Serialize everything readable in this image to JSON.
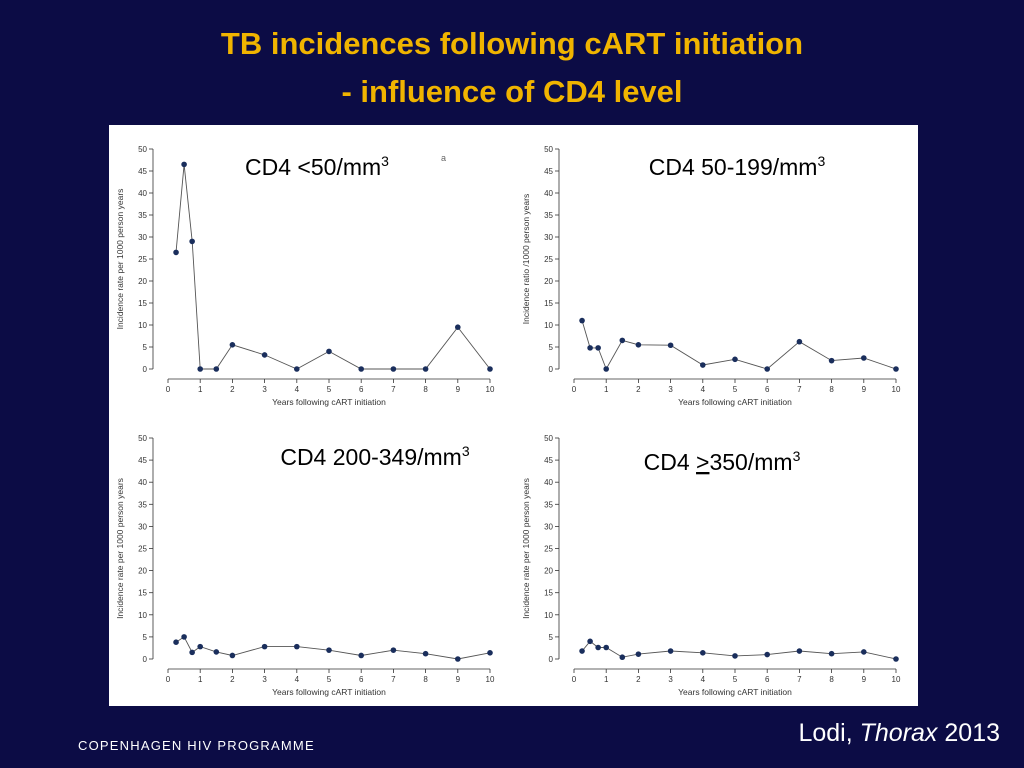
{
  "title_line1": "TB incidences following cART initiation",
  "title_line2": "- influence of CD4 level",
  "footer": "COPENHAGEN HIV PROGRAMME",
  "citation": {
    "author": "Lodi, ",
    "journal": "Thorax",
    "year": " 2013"
  },
  "colors": {
    "background": "#0c0c45",
    "title": "#f0b400",
    "marker": "#1a2e5c"
  },
  "chart_data": [
    {
      "type": "line",
      "title": "CD4 <50/mm3",
      "title_main": "CD4 <50/mm",
      "title_sup": "3",
      "corner_mark": "a",
      "xlabel": "Years following cART initiation",
      "ylabel": "Incidence rate per 1000 person years",
      "xlim": [
        0,
        10
      ],
      "ylim": [
        0,
        50
      ],
      "xticks": [
        "0",
        "1",
        "2",
        "3",
        "4",
        "5",
        "6",
        "7",
        "8",
        "9",
        "10"
      ],
      "yticks": [
        "0",
        "5",
        "10",
        "15",
        "20",
        "25",
        "30",
        "35",
        "40",
        "45",
        "50"
      ],
      "x": [
        0.25,
        0.5,
        0.75,
        1,
        1.5,
        2,
        3,
        4,
        5,
        6,
        7,
        8,
        9,
        10
      ],
      "y": [
        26.5,
        46.5,
        29,
        0,
        0,
        5.5,
        3.2,
        0,
        4,
        0,
        0,
        0,
        9.5,
        0
      ]
    },
    {
      "type": "line",
      "title": "CD4  50-199/mm3",
      "title_main": "CD4  50-199/mm",
      "title_sup": "3",
      "xlabel": "Years following cART initiation",
      "ylabel": "Incidence ratio /1000 person years",
      "xlim": [
        0,
        10
      ],
      "ylim": [
        0,
        50
      ],
      "xticks": [
        "0",
        "1",
        "2",
        "3",
        "4",
        "5",
        "6",
        "7",
        "8",
        "9",
        "10"
      ],
      "yticks": [
        "0",
        "5",
        "10",
        "15",
        "20",
        "25",
        "30",
        "35",
        "40",
        "45",
        "50"
      ],
      "x": [
        0.25,
        0.5,
        0.75,
        1,
        1.5,
        2,
        3,
        4,
        5,
        6,
        7,
        8,
        9,
        10
      ],
      "y": [
        11,
        4.8,
        4.8,
        0,
        6.5,
        5.5,
        5.4,
        0.9,
        2.2,
        0,
        6.2,
        1.9,
        2.5,
        0
      ]
    },
    {
      "type": "line",
      "title": "CD4  200-349/mm3",
      "title_main": "CD4  200-349/mm",
      "title_sup": "3",
      "xlabel": "Years following cART initiation",
      "ylabel": "Incidence rate per 1000 person years",
      "xlim": [
        0,
        10
      ],
      "ylim": [
        0,
        50
      ],
      "xticks": [
        "0",
        "1",
        "2",
        "3",
        "4",
        "5",
        "6",
        "7",
        "8",
        "9",
        "10"
      ],
      "yticks": [
        "0",
        "5",
        "10",
        "15",
        "20",
        "25",
        "30",
        "35",
        "40",
        "45",
        "50"
      ],
      "x": [
        0.25,
        0.5,
        0.75,
        1,
        1.5,
        2,
        3,
        4,
        5,
        6,
        7,
        8,
        9,
        10
      ],
      "y": [
        3.8,
        5,
        1.5,
        2.8,
        1.6,
        0.8,
        2.8,
        2.8,
        2,
        0.8,
        2,
        1.2,
        0,
        1.4
      ]
    },
    {
      "type": "line",
      "title": "CD4  >350/mm3",
      "title_prefix": "CD4  ",
      "title_underlined": ">",
      "title_main": "350/mm",
      "title_sup": "3",
      "xlabel": "Years following cART initiation",
      "ylabel": "Incidence rate per 1000 person years",
      "xlim": [
        0,
        10
      ],
      "ylim": [
        0,
        50
      ],
      "xticks": [
        "0",
        "1",
        "2",
        "3",
        "4",
        "5",
        "6",
        "7",
        "8",
        "9",
        "10"
      ],
      "yticks": [
        "0",
        "5",
        "10",
        "15",
        "20",
        "25",
        "30",
        "35",
        "40",
        "45",
        "50"
      ],
      "x": [
        0.25,
        0.5,
        0.75,
        1,
        1.5,
        2,
        3,
        4,
        5,
        6,
        7,
        8,
        9,
        10
      ],
      "y": [
        1.8,
        4,
        2.6,
        2.6,
        0.4,
        1.1,
        1.8,
        1.4,
        0.7,
        1,
        1.8,
        1.2,
        1.6,
        0
      ]
    }
  ]
}
